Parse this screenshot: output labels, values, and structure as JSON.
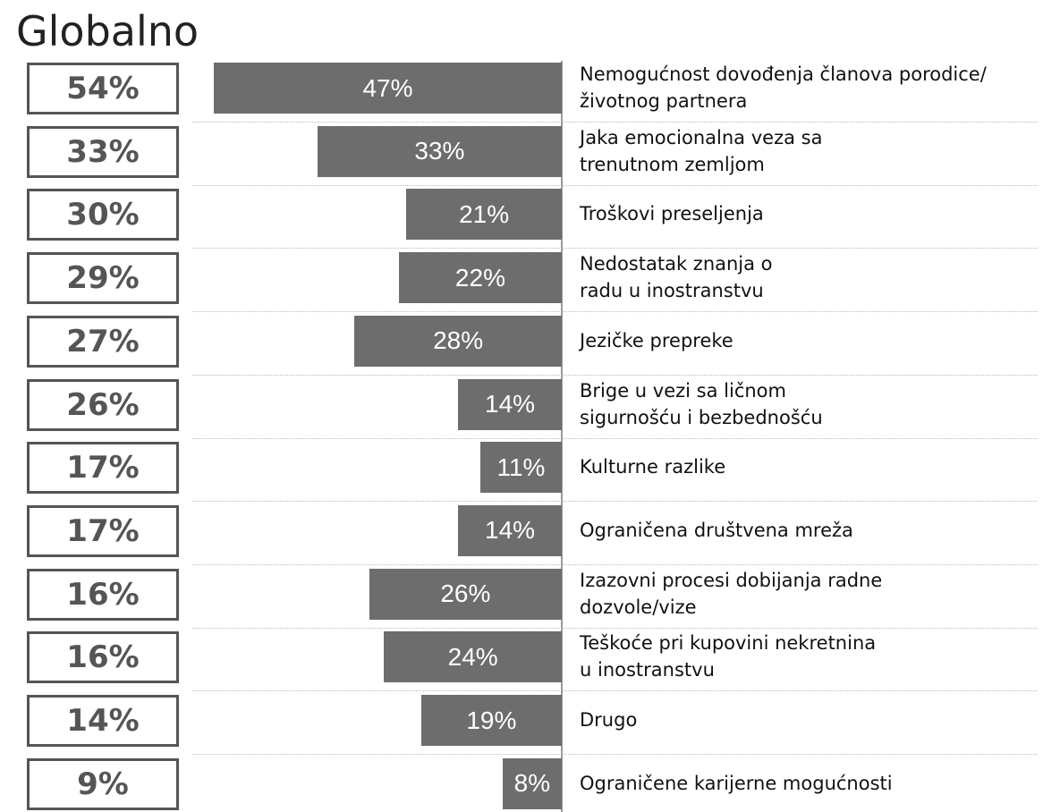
{
  "chart_data": {
    "type": "bar",
    "title": "Globalno",
    "categories": [
      "Nemogućnost dovođenja članova porodice/\nživotnog partnera",
      "Jaka emocionalna veza sa\ntrenutnom zemljom",
      "Troškovi preseljenja",
      "Nedostatak znanja o\nradu u inostranstvu",
      "Jezičke prepreke",
      "Brige u vezi sa ličnom\nsigurnošću i bezbednošću",
      "Kulturne razlike",
      "Ograničena društvena mreža",
      "Izazovni procesi dobijanja radne\ndozvole/vize",
      "Teškoće pri kupovini nekretnina\nu inostranstvu",
      "Drugo",
      "Ograničene karijerne mogućnosti"
    ],
    "series": [
      {
        "color": "#555555",
        "values": [
          54,
          33,
          30,
          29,
          27,
          26,
          17,
          17,
          16,
          16,
          14,
          9
        ],
        "value_labels": [
          "54%",
          "33%",
          "30%",
          "29%",
          "27%",
          "26%",
          "17%",
          "17%",
          "16%",
          "16%",
          "14%",
          "9%"
        ]
      },
      {
        "color": "#6d6d6d",
        "values": [
          47,
          33,
          21,
          22,
          28,
          14,
          11,
          14,
          26,
          24,
          19,
          8
        ],
        "value_labels": [
          "47%",
          "33%",
          "21%",
          "22%",
          "28%",
          "14%",
          "11%",
          "14%",
          "26%",
          "24%",
          "19%",
          "8%"
        ]
      }
    ]
  }
}
